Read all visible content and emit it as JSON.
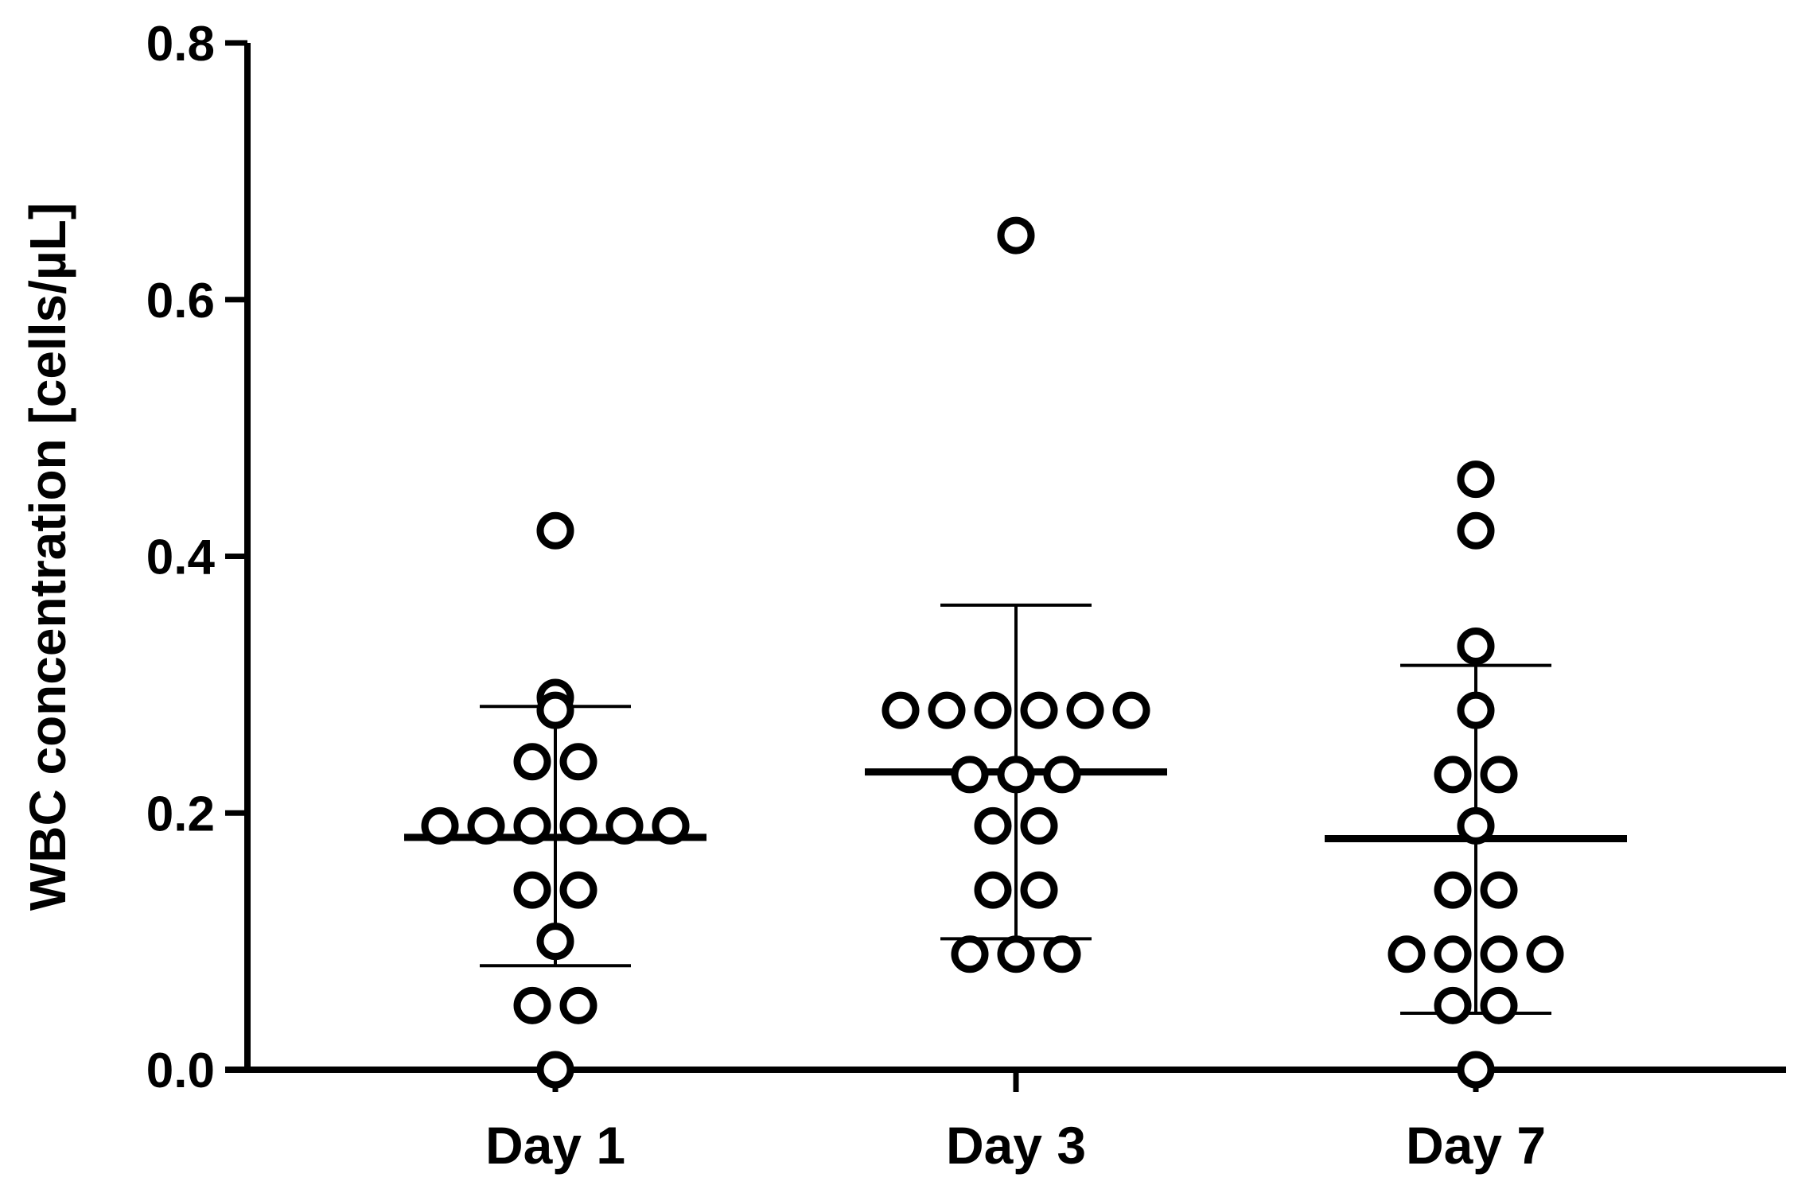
{
  "chart_data": {
    "type": "scatter",
    "title": "",
    "xlabel": "",
    "ylabel": "WBC concentration [cells/µL]",
    "ylim": [
      0,
      0.8
    ],
    "yticks": [
      "0.0",
      "0.2",
      "0.4",
      "0.6",
      "0.8"
    ],
    "categories": [
      "Day 1",
      "Day 3",
      "Day 7"
    ],
    "grid": false,
    "legend": "none",
    "series": [
      {
        "category": "Day 1",
        "values": [
          0.42,
          0.29,
          0.28,
          0.24,
          0.24,
          0.19,
          0.19,
          0.19,
          0.19,
          0.19,
          0.19,
          0.14,
          0.14,
          0.1,
          0.05,
          0.05,
          0.0
        ],
        "mean": 0.181,
        "sd_upper": 0.283,
        "sd_lower": 0.081
      },
      {
        "category": "Day 3",
        "values": [
          0.65,
          0.28,
          0.28,
          0.28,
          0.28,
          0.28,
          0.28,
          0.23,
          0.23,
          0.23,
          0.19,
          0.19,
          0.14,
          0.14,
          0.09,
          0.09,
          0.09
        ],
        "mean": 0.232,
        "sd_upper": 0.362,
        "sd_lower": 0.102
      },
      {
        "category": "Day 7",
        "values": [
          0.46,
          0.42,
          0.33,
          0.28,
          0.23,
          0.23,
          0.19,
          0.14,
          0.14,
          0.09,
          0.09,
          0.09,
          0.09,
          0.05,
          0.05,
          0.0
        ],
        "mean": 0.18,
        "sd_upper": 0.315,
        "sd_lower": 0.044
      }
    ],
    "colors": {
      "marker_stroke": "#000000",
      "marker_fill": "#ffffff",
      "axis": "#000000"
    }
  }
}
